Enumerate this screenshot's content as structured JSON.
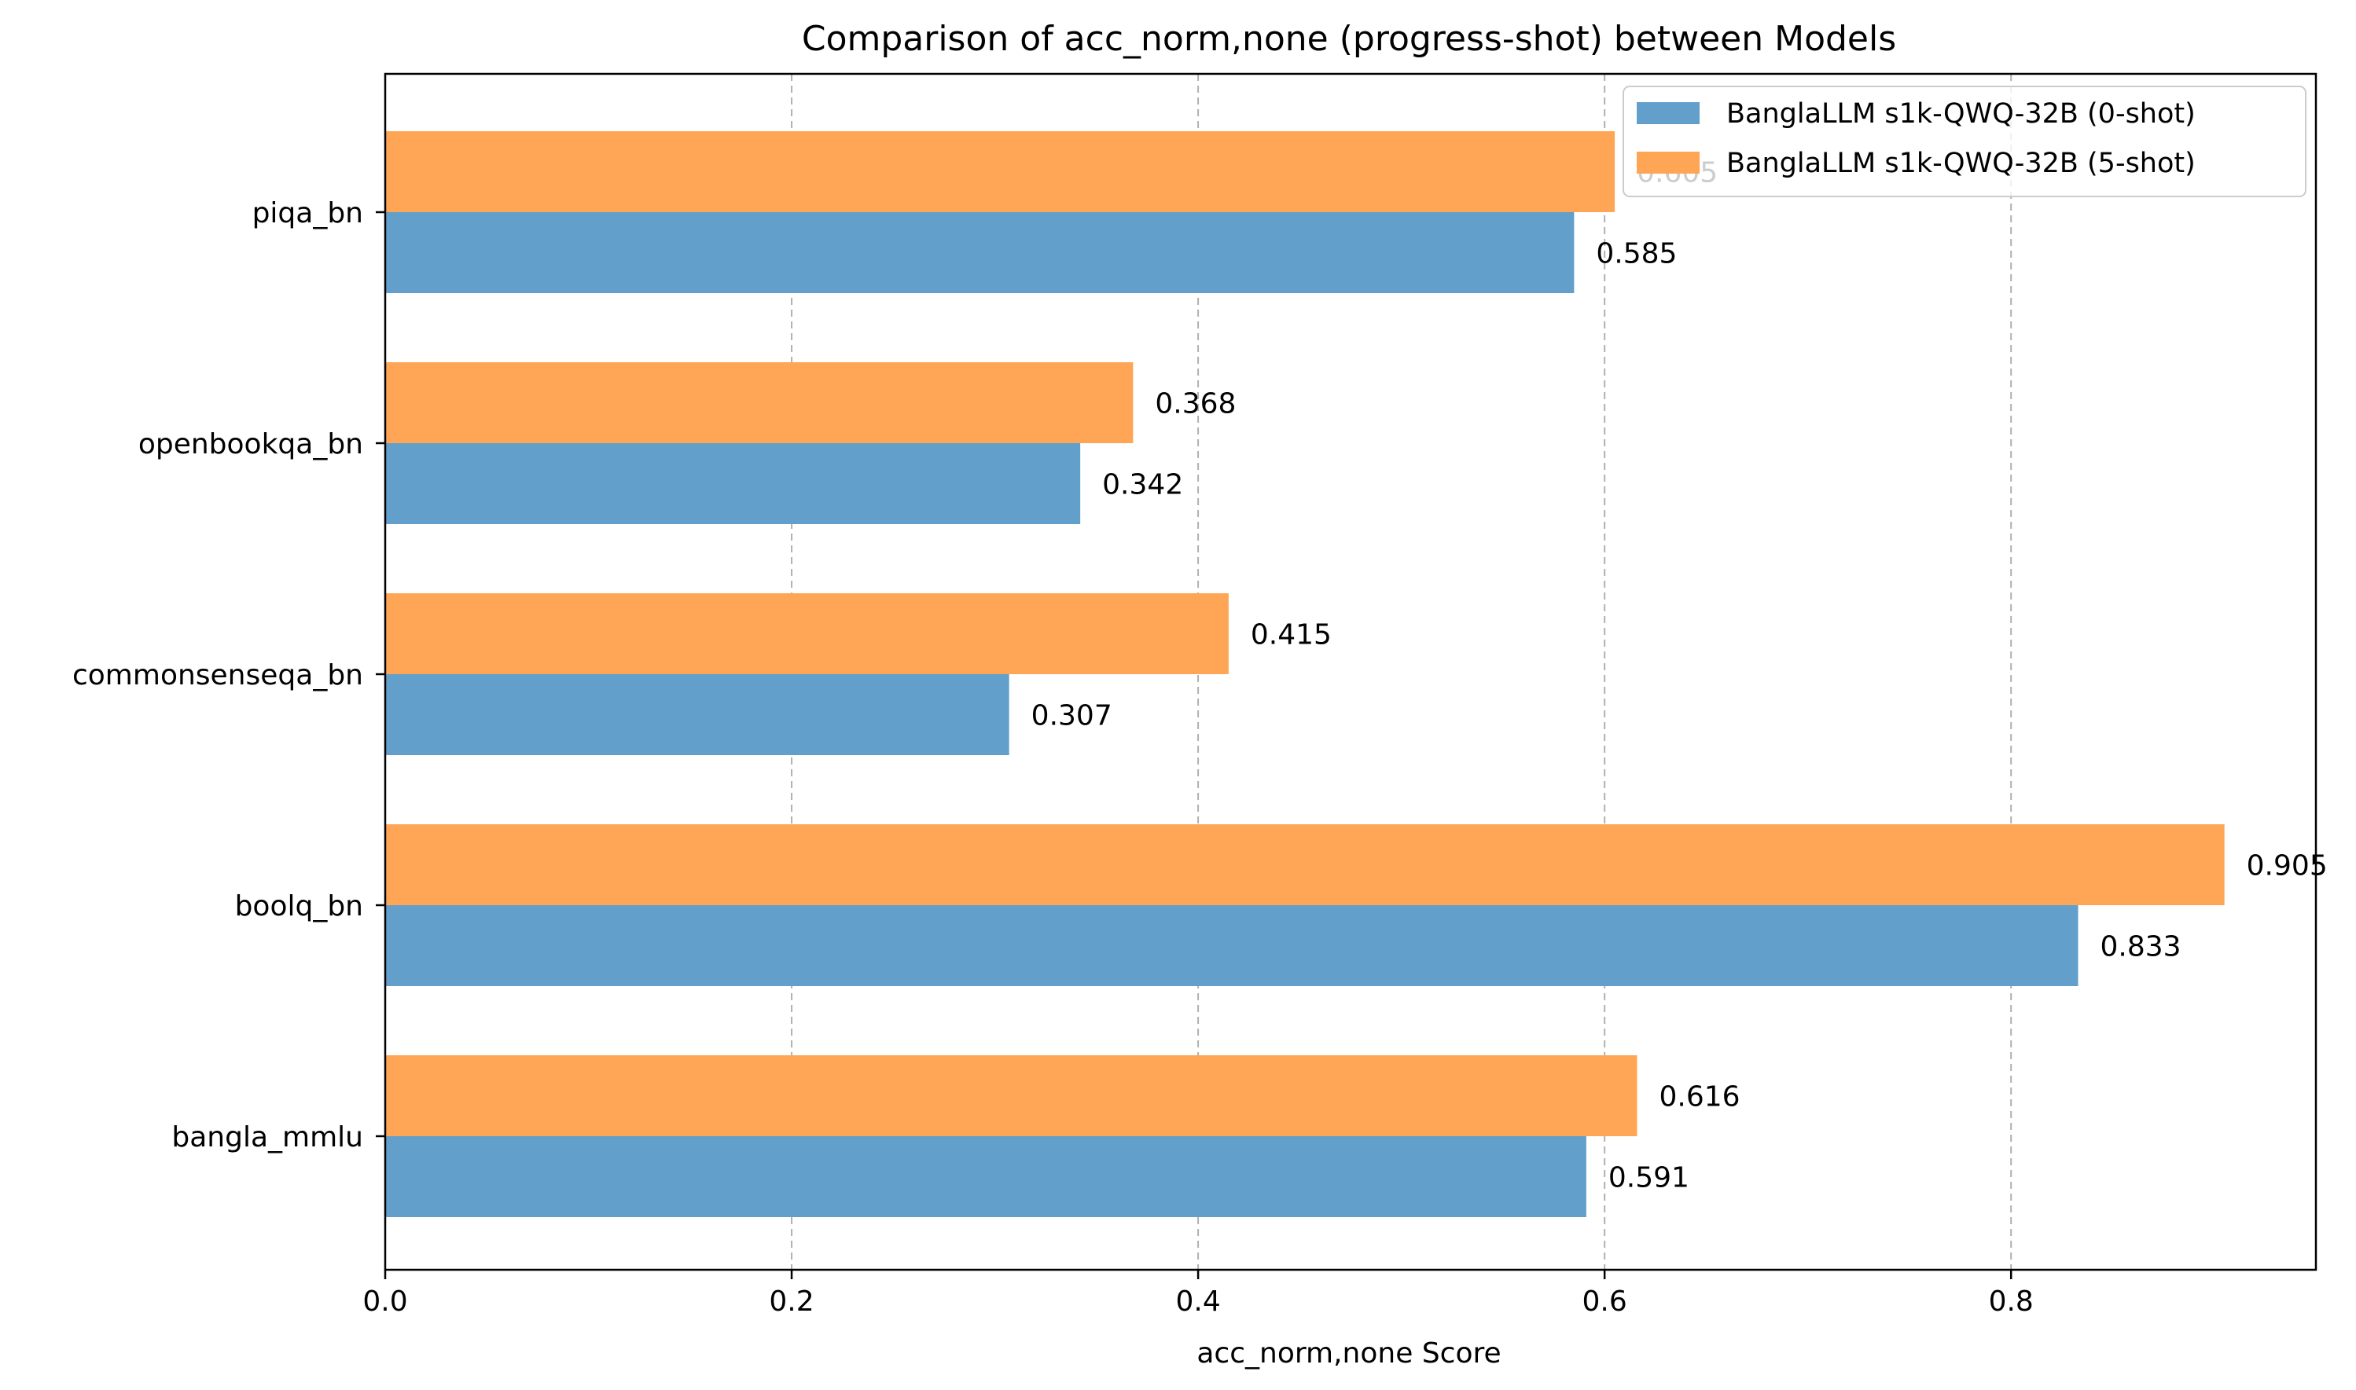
{
  "chart_data": {
    "type": "bar",
    "orientation": "horizontal",
    "title": "Comparison of acc_norm,none (progress-shot) between Models",
    "xlabel": "acc_norm,none Score",
    "ylabel": "",
    "xlim": [
      0,
      0.95
    ],
    "x_ticks": [
      {
        "value": 0.0,
        "label": "0.0"
      },
      {
        "value": 0.2,
        "label": "0.2"
      },
      {
        "value": 0.4,
        "label": "0.4"
      },
      {
        "value": 0.6,
        "label": "0.6"
      },
      {
        "value": 0.8,
        "label": "0.8"
      }
    ],
    "grid": "x-dashed",
    "legend_position": "top-right",
    "categories": [
      "bangla_mmlu",
      "boolq_bn",
      "commonsenseqa_bn",
      "openbookqa_bn",
      "piqa_bn"
    ],
    "series": [
      {
        "name": "BanglaLLM s1k-QWQ-32B (0-shot)",
        "color": "#62a0cb",
        "values": [
          0.591,
          0.833,
          0.307,
          0.342,
          0.585
        ],
        "labels": [
          "0.591",
          "0.833",
          "0.307",
          "0.342",
          "0.585"
        ]
      },
      {
        "name": "BanglaLLM s1k-QWQ-32B (5-shot)",
        "color": "#ffa556",
        "values": [
          0.616,
          0.905,
          0.415,
          0.368,
          0.605
        ],
        "labels": [
          "0.616",
          "0.905",
          "0.415",
          "0.368",
          "0.605"
        ]
      }
    ]
  }
}
